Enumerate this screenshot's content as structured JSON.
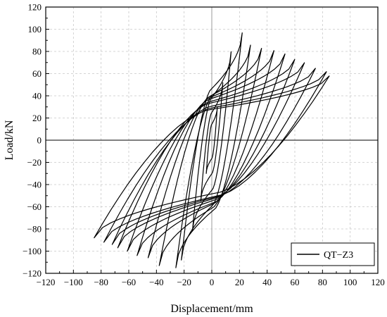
{
  "chart_data": {
    "type": "line",
    "title": "",
    "xlabel": "Displacement/mm",
    "ylabel": "Load/kN",
    "xlim": [
      -120,
      120
    ],
    "ylim": [
      -120,
      120
    ],
    "xticks": [
      -120,
      -100,
      -80,
      -60,
      -40,
      -20,
      0,
      20,
      40,
      60,
      80,
      100,
      120
    ],
    "yticks": [
      -120,
      -100,
      -80,
      -60,
      -40,
      -20,
      0,
      20,
      40,
      60,
      80,
      100,
      120
    ],
    "grid": true,
    "legend_position": "bottom-right",
    "series": [
      {
        "name": "QT−Z3",
        "color": "#000000",
        "loops": [
          {
            "dmax": 4,
            "pmax": 30,
            "dmin": -4,
            "pmin": -30
          },
          {
            "dmax": 8,
            "pmax": 52,
            "dmin": -8,
            "pmin": -55
          },
          {
            "dmax": 14,
            "pmax": 80,
            "dmin": -14,
            "pmin": -82
          },
          {
            "dmax": 22,
            "pmax": 97,
            "dmin": -22,
            "pmin": -108
          },
          {
            "dmax": 28,
            "pmax": 86,
            "dmin": -26,
            "pmin": -115
          },
          {
            "dmax": 36,
            "pmax": 83,
            "dmin": -38,
            "pmin": -113
          },
          {
            "dmax": 45,
            "pmax": 81,
            "dmin": -46,
            "pmin": -106
          },
          {
            "dmax": 53,
            "pmax": 78,
            "dmin": -54,
            "pmin": -104
          },
          {
            "dmax": 60,
            "pmax": 73,
            "dmin": -61,
            "pmin": -100
          },
          {
            "dmax": 67,
            "pmax": 70,
            "dmin": -68,
            "pmin": -97
          },
          {
            "dmax": 75,
            "pmax": 65,
            "dmin": -72,
            "pmin": -94
          },
          {
            "dmax": 83,
            "pmax": 62,
            "dmin": -78,
            "pmin": -92
          },
          {
            "dmax": 85,
            "pmax": 58,
            "dmin": -85,
            "pmin": -88
          }
        ]
      }
    ]
  }
}
